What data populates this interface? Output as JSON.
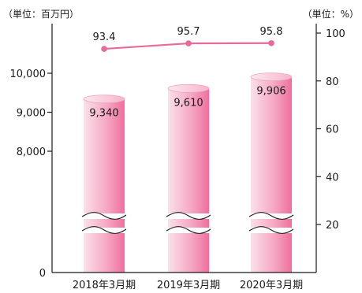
{
  "chart_data": {
    "type": "bar",
    "categories": [
      "2018年3月期",
      "2019年3月期",
      "2020年3月期"
    ],
    "bar_series": {
      "values": [
        9340,
        9610,
        9906
      ],
      "labels": [
        "9,340",
        "9,610",
        "9,906"
      ],
      "axis": "left",
      "color": "#f07aa3"
    },
    "line_series": {
      "values": [
        93.4,
        95.7,
        95.8
      ],
      "labels": [
        "93.4",
        "95.7",
        "95.8"
      ],
      "axis": "right",
      "color": "#e8699b"
    },
    "left_axis": {
      "unit_label": "（単位：百万円）",
      "ticks": [
        0,
        8000,
        9000,
        10000
      ],
      "tick_labels": [
        "0",
        "8,000",
        "9,000",
        "10,000"
      ],
      "break_between": [
        0,
        8000
      ]
    },
    "right_axis": {
      "unit_label": "（単位：%）",
      "ticks": [
        20,
        40,
        60,
        80,
        100
      ],
      "tick_labels": [
        "20",
        "40",
        "60",
        "80",
        "100"
      ]
    },
    "grid": false,
    "legend": "none"
  }
}
